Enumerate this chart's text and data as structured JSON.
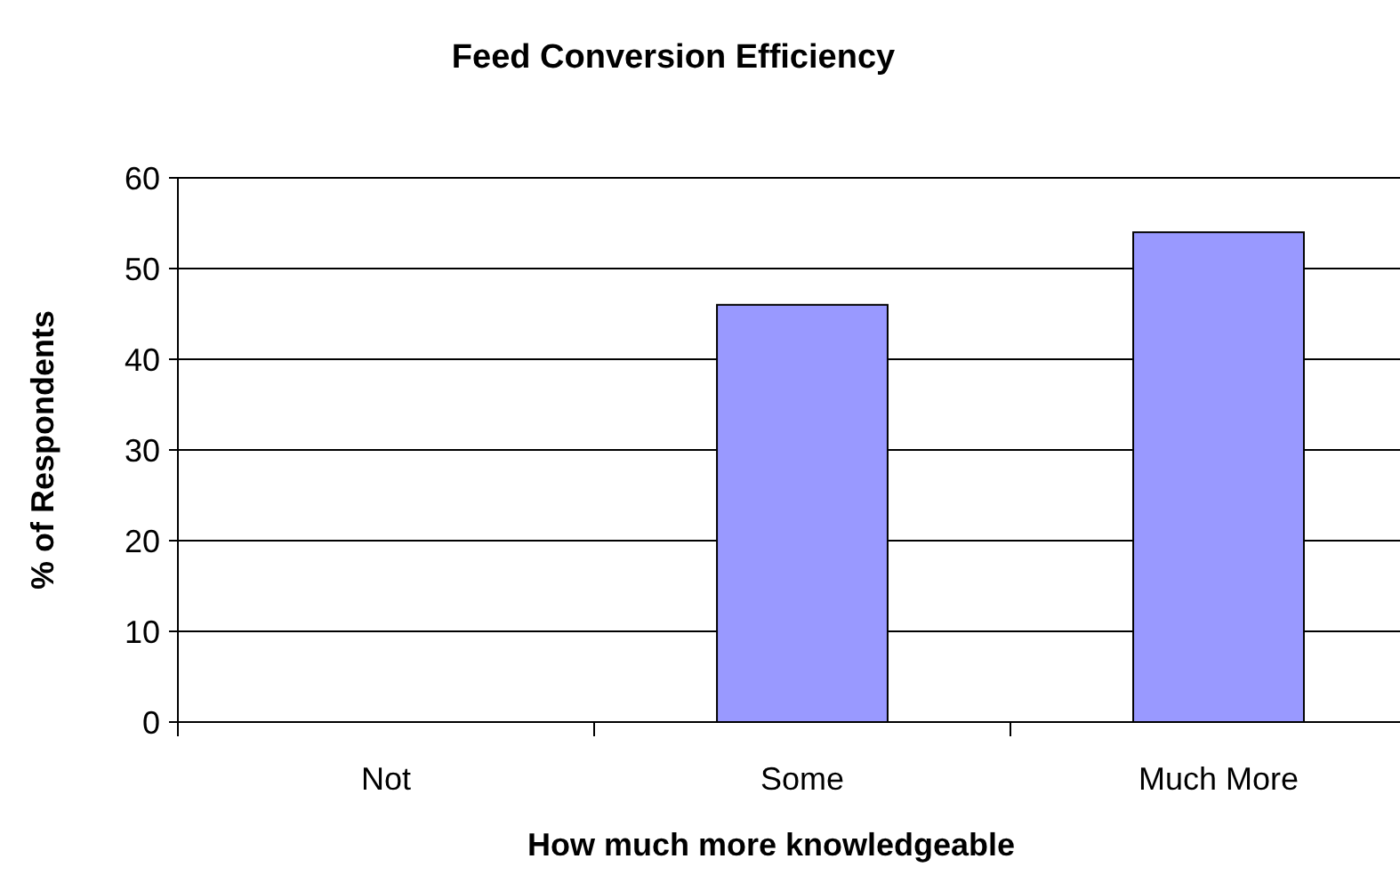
{
  "chart_data": {
    "type": "bar",
    "title": "Feed Conversion Efficiency",
    "xlabel": "How much more knowledgeable",
    "ylabel": "% of Respondents",
    "categories": [
      "Not",
      "Some",
      "Much More"
    ],
    "values": [
      0,
      46,
      54
    ],
    "color": "#9999ff",
    "ylim": [
      0,
      60
    ],
    "yticks": [
      0,
      10,
      20,
      30,
      40,
      50,
      60
    ],
    "grid": "y"
  }
}
